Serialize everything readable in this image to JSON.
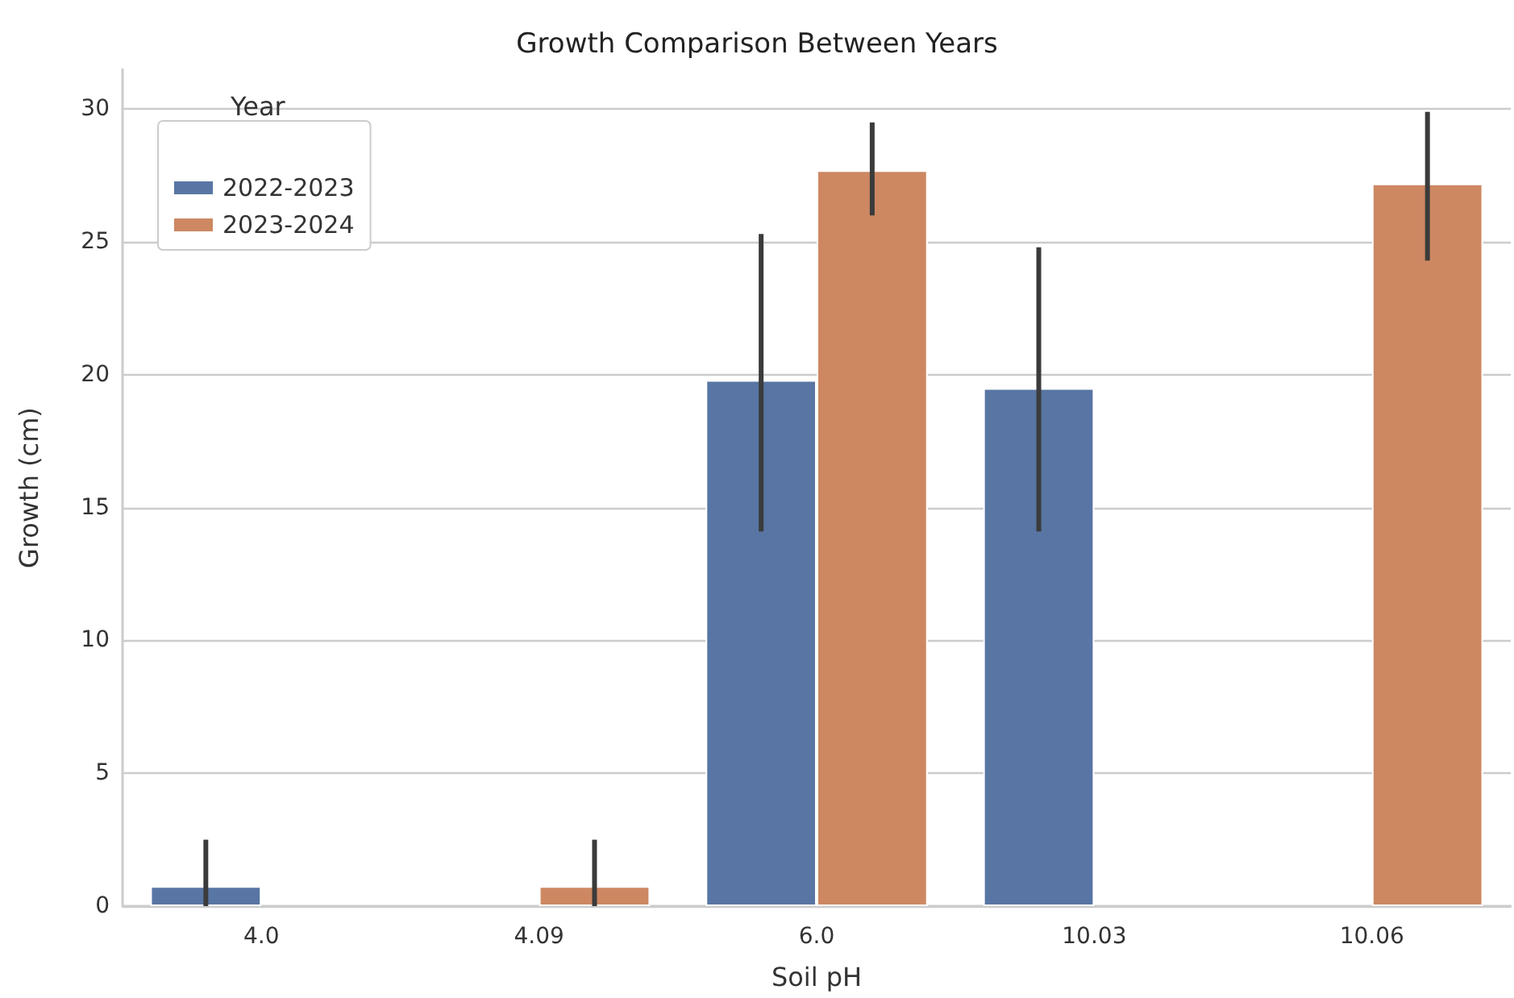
{
  "chart_data": {
    "type": "bar",
    "title": "Growth Comparison Between Years",
    "xlabel": "Soil pH",
    "ylabel": "Growth (cm)",
    "legend_title": "Year",
    "categories": [
      "4.0",
      "4.09",
      "6.0",
      "10.03",
      "10.06"
    ],
    "series": [
      {
        "name": "2022-2023",
        "color": "#5875a4",
        "values": [
          0.75,
          null,
          19.8,
          19.5,
          null
        ],
        "errors": [
          [
            0,
            2.5
          ],
          null,
          [
            14.1,
            25.3
          ],
          [
            14.1,
            24.8
          ],
          null
        ]
      },
      {
        "name": "2023-2024",
        "color": "#cd8862",
        "values": [
          null,
          0.75,
          27.7,
          null,
          27.2
        ],
        "errors": [
          null,
          [
            0,
            2.5
          ],
          [
            26,
            29.5
          ],
          null,
          [
            24.3,
            29.9
          ]
        ]
      }
    ],
    "ylim": [
      0,
      31.5
    ],
    "yticks": [
      0,
      5,
      10,
      15,
      20,
      25,
      30
    ],
    "grid": "y",
    "legend": "top left"
  }
}
